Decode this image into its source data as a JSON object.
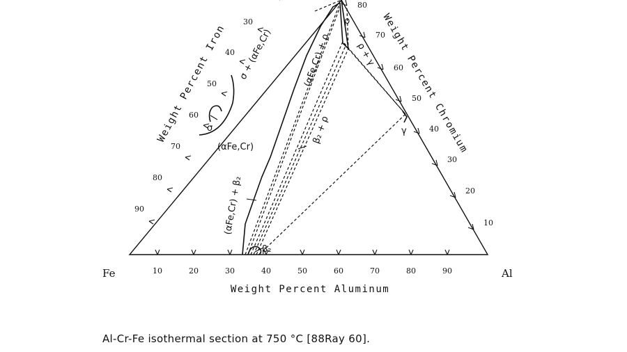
{
  "figure": {
    "corner_labels": {
      "fe": "Fe",
      "al": "Al"
    },
    "axis_titles": {
      "iron": "Weight Percent Iron",
      "chromium": "Weight Percent Chromium",
      "aluminum": "Weight Percent Aluminum"
    },
    "ticks": {
      "aluminum": [
        "10",
        "20",
        "30",
        "40",
        "50",
        "60",
        "70",
        "80",
        "90"
      ],
      "iron": [
        "90",
        "80",
        "70",
        "60",
        "50",
        "40",
        "30"
      ],
      "chromium": [
        "10",
        "20",
        "30",
        "40",
        "50",
        "60",
        "70",
        "80"
      ]
    },
    "phase_labels": {
      "sigma_alpha": "σ + (αFe,Cr)",
      "sigma": "σ",
      "alpha": "(αFe,Cr)",
      "alpha_rho": "(αFe,Cr) + ρ",
      "rho_gamma": "ρ + γ",
      "beta2_rho": "β₂ + ρ",
      "alpha_beta2": "(αFe,Cr) + β₂",
      "beta2": "β₂",
      "gamma": "γ",
      "rho": "ρ"
    }
  },
  "caption": "Al-Cr-Fe isothermal section at 750 °C [88Ray 60]."
}
